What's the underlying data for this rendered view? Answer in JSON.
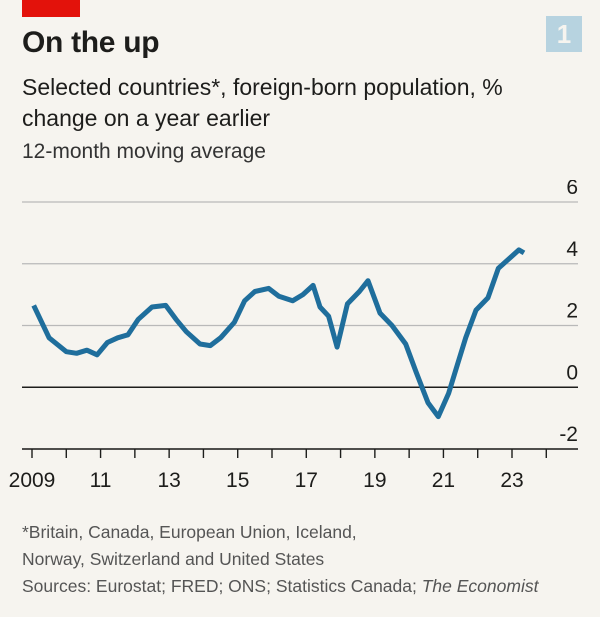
{
  "header": {
    "chart_number": "1",
    "title": "On the up",
    "subtitle": "Selected countries*, foreign-born population, % change on a year earlier",
    "subnote": "12-month moving average"
  },
  "footer": {
    "footnote_line1": "*Britain, Canada, European Union, Iceland,",
    "footnote_line2": "Norway, Switzerland and United States",
    "sources_prefix": "Sources: Eurostat; FRED; ONS; Statistics Canada; ",
    "sources_italic": "The Economist"
  },
  "colors": {
    "line": "#1f6e9c",
    "accent_red": "#e3120b",
    "grid": "#b9b9b9",
    "zero_line": "#1d1d1b"
  },
  "chart_data": {
    "type": "line",
    "title": "On the up",
    "subtitle": "Selected countries*, foreign-born population, % change on a year earlier",
    "xlabel": "",
    "ylabel": "",
    "ylim": [
      -2,
      6
    ],
    "xlim": [
      2008.9,
      2024.8
    ],
    "y_ticks": [
      6,
      4,
      2,
      0,
      -2
    ],
    "y_tick_labels": [
      "6",
      "4",
      "2",
      "0",
      "-2"
    ],
    "x_ticks": [
      2009,
      2011,
      2013,
      2015,
      2017,
      2019,
      2021,
      2023
    ],
    "x_tick_labels": [
      "2009",
      "11",
      "13",
      "15",
      "17",
      "19",
      "21",
      "23"
    ],
    "grid": true,
    "legend": "none",
    "series": [
      {
        "x": [
          2009.05,
          2009.5,
          2010.0,
          2010.3,
          2010.6,
          2010.9,
          2011.2,
          2011.5,
          2011.8,
          2012.1,
          2012.5,
          2012.9,
          2013.2,
          2013.5,
          2013.9,
          2014.2,
          2014.5,
          2014.9,
          2015.2,
          2015.5,
          2015.9,
          2016.2,
          2016.6,
          2016.9,
          2017.2,
          2017.4,
          2017.65,
          2017.9,
          2018.2,
          2018.55,
          2018.8,
          2019.15,
          2019.5,
          2019.9,
          2020.2,
          2020.55,
          2020.85,
          2021.15,
          2021.4,
          2021.65,
          2021.95,
          2022.3,
          2022.6,
          2022.95,
          2023.2,
          2023.35
        ],
        "y": [
          2.65,
          1.6,
          1.15,
          1.1,
          1.2,
          1.05,
          1.45,
          1.6,
          1.7,
          2.2,
          2.6,
          2.65,
          2.2,
          1.8,
          1.4,
          1.35,
          1.6,
          2.1,
          2.8,
          3.1,
          3.2,
          2.95,
          2.8,
          3.0,
          3.3,
          2.6,
          2.3,
          1.3,
          2.7,
          3.1,
          3.45,
          2.4,
          2.0,
          1.4,
          0.5,
          -0.5,
          -0.95,
          -0.2,
          0.7,
          1.6,
          2.5,
          2.9,
          3.85,
          4.2,
          4.45,
          4.35
        ]
      }
    ]
  }
}
